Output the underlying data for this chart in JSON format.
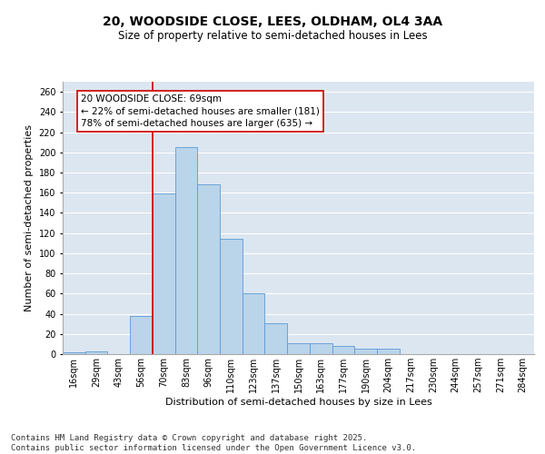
{
  "title_line1": "20, WOODSIDE CLOSE, LEES, OLDHAM, OL4 3AA",
  "title_line2": "Size of property relative to semi-detached houses in Lees",
  "xlabel": "Distribution of semi-detached houses by size in Lees",
  "ylabel": "Number of semi-detached properties",
  "categories": [
    "16sqm",
    "29sqm",
    "43sqm",
    "56sqm",
    "70sqm",
    "83sqm",
    "96sqm",
    "110sqm",
    "123sqm",
    "137sqm",
    "150sqm",
    "163sqm",
    "177sqm",
    "190sqm",
    "204sqm",
    "217sqm",
    "230sqm",
    "244sqm",
    "257sqm",
    "271sqm",
    "284sqm"
  ],
  "values": [
    2,
    3,
    0,
    38,
    159,
    205,
    168,
    114,
    60,
    31,
    11,
    11,
    8,
    5,
    5,
    0,
    0,
    0,
    0,
    0,
    0
  ],
  "bar_color": "#bad4ea",
  "bar_edge_color": "#5b9bd5",
  "background_color": "#dce6f1",
  "grid_color": "#ffffff",
  "annotation_text": "20 WOODSIDE CLOSE: 69sqm\n← 22% of semi-detached houses are smaller (181)\n78% of semi-detached houses are larger (635) →",
  "annotation_box_facecolor": "#ffffff",
  "annotation_box_edgecolor": "#cc0000",
  "vline_color": "#cc0000",
  "vline_x_index": 4,
  "ylim": [
    0,
    270
  ],
  "yticks": [
    0,
    20,
    40,
    60,
    80,
    100,
    120,
    140,
    160,
    180,
    200,
    220,
    240,
    260
  ],
  "footnote": "Contains HM Land Registry data © Crown copyright and database right 2025.\nContains public sector information licensed under the Open Government Licence v3.0.",
  "title_fontsize": 10,
  "subtitle_fontsize": 8.5,
  "ylabel_fontsize": 8,
  "xlabel_fontsize": 8,
  "tick_fontsize": 7,
  "annotation_fontsize": 7.5,
  "footnote_fontsize": 6.5
}
